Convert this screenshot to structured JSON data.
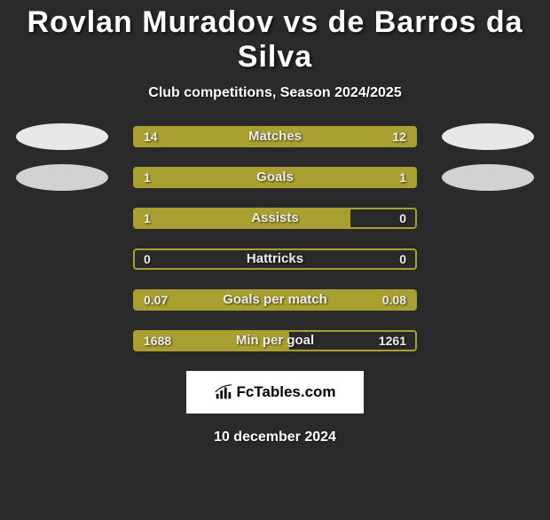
{
  "title": "Rovlan Muradov vs de Barros da Silva",
  "subtitle": "Club competitions, Season 2024/2025",
  "colors": {
    "bar_fill": "#a8a030",
    "bar_border": "#a8a030",
    "bar_bg": "#2a2a2a",
    "ellipse_left_row0": "#e8e8e8",
    "ellipse_right_row0": "#e8e8e8",
    "ellipse_left_row1": "#d2d2d2",
    "ellipse_right_row1": "#d2d2d2"
  },
  "stats": [
    {
      "label": "Matches",
      "left_val": "14",
      "right_val": "12",
      "fill_pct": 100,
      "show_ellipse": true
    },
    {
      "label": "Goals",
      "left_val": "1",
      "right_val": "1",
      "fill_pct": 100,
      "show_ellipse": true
    },
    {
      "label": "Assists",
      "left_val": "1",
      "right_val": "0",
      "fill_pct": 77,
      "show_ellipse": false
    },
    {
      "label": "Hattricks",
      "left_val": "0",
      "right_val": "0",
      "fill_pct": 0,
      "show_ellipse": false
    },
    {
      "label": "Goals per match",
      "left_val": "0.07",
      "right_val": "0.08",
      "fill_pct": 100,
      "show_ellipse": false
    },
    {
      "label": "Min per goal",
      "left_val": "1688",
      "right_val": "1261",
      "fill_pct": 55,
      "show_ellipse": false
    }
  ],
  "logo_text": "FcTables.com",
  "date": "10 december 2024"
}
